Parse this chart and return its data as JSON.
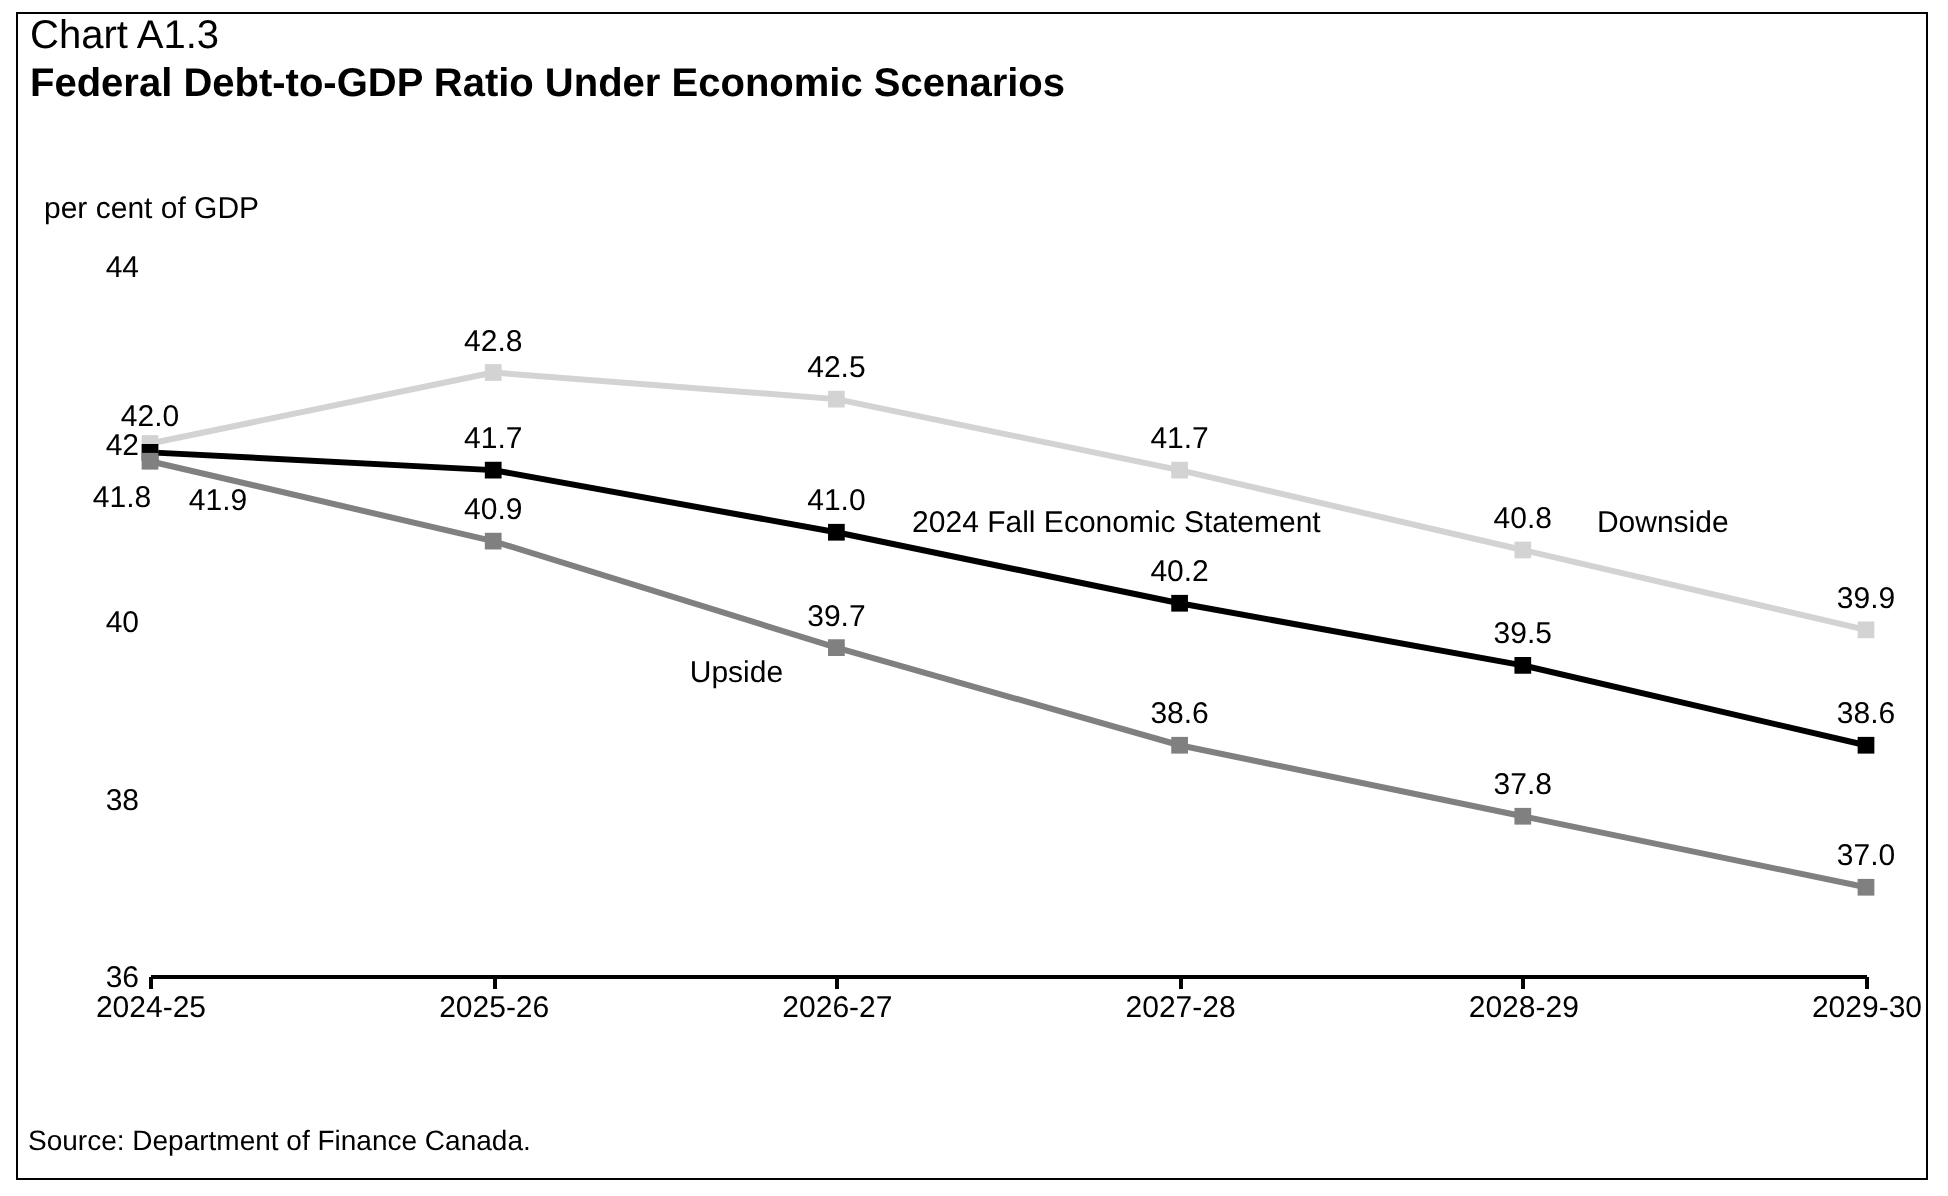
{
  "chart_data": {
    "type": "line",
    "title": "Chart A1.3",
    "subtitle": "Federal Debt-to-GDP Ratio Under Economic Scenarios",
    "ylabel": "per cent of GDP",
    "categories": [
      "2024-25",
      "2025-26",
      "2026-27",
      "2027-28",
      "2028-29",
      "2029-30"
    ],
    "series": [
      {
        "name": "Downside",
        "color": "#d3d3d3",
        "values": [
          42.0,
          42.8,
          42.5,
          41.7,
          40.8,
          39.9
        ],
        "value_labels": [
          "42.0",
          "42.8",
          "42.5",
          "41.7",
          "40.8",
          "39.9"
        ]
      },
      {
        "name": "2024 Fall Economic Statement",
        "color": "#000000",
        "values": [
          41.9,
          41.7,
          41.0,
          40.2,
          39.5,
          38.6
        ],
        "value_labels": [
          "41.9",
          "41.7",
          "41.0",
          "40.2",
          "39.5",
          "38.6"
        ]
      },
      {
        "name": "Upside",
        "color": "#808080",
        "values": [
          41.8,
          40.9,
          39.7,
          38.6,
          37.8,
          37.0
        ],
        "value_labels": [
          "41.8",
          "40.9",
          "39.7",
          "38.6",
          "37.8",
          "37.0"
        ]
      }
    ],
    "ylim": [
      36,
      44
    ],
    "yticks": [
      36,
      38,
      40,
      42,
      44
    ],
    "grid": false,
    "legend": false,
    "marker": "square",
    "line_style": "solid",
    "annotations": [
      "Source: Department of Finance Canada."
    ]
  }
}
